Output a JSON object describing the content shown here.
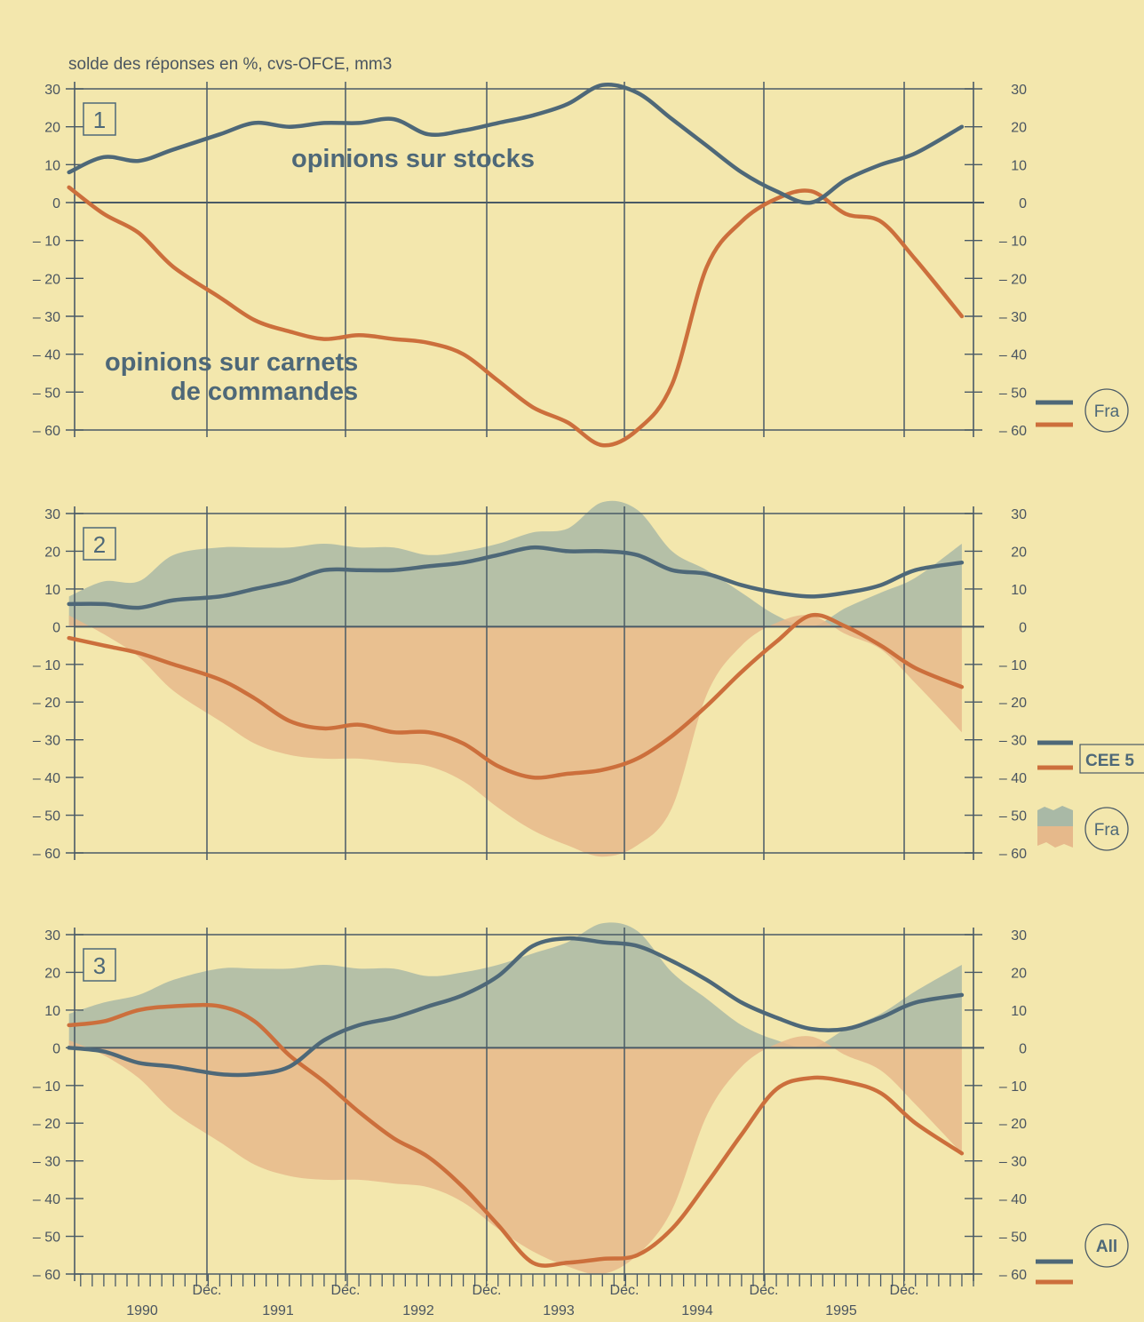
{
  "figure": {
    "header": "solde des réponses en %, cvs-OFCE, mm3",
    "colors": {
      "background": "#f3e7ad",
      "stocks": "#4e6878",
      "orders": "#cc6f3c",
      "fill_stocks": "#a9b9a6",
      "fill_orders": "#e6b98b",
      "axis": "#4a5a66"
    },
    "x_tick_labels": [
      "Déc.",
      "Déc.",
      "Déc.",
      "Déc.",
      "Déc.",
      "Déc."
    ],
    "year_labels": [
      "1990",
      "1991",
      "1992",
      "1993",
      "1994",
      "1995"
    ]
  },
  "chart_data": [
    {
      "type": "line",
      "panel_label": "1",
      "ylim": [
        -60,
        30
      ],
      "yticks": [
        30,
        20,
        10,
        0,
        -10,
        -20,
        -30,
        -40,
        -50,
        -60
      ],
      "ytick_labels": [
        "30",
        "20",
        "10",
        "0",
        "– 10",
        "– 20",
        "– 30",
        "– 40",
        "– 50",
        "– 60"
      ],
      "annotations": [
        "opinions sur stocks",
        "opinions sur carnets",
        "de commandes"
      ],
      "legend": {
        "label": "Fra",
        "position": "right"
      },
      "series": [
        {
          "role": "stocks",
          "x": [
            "1989-07",
            "1989-10",
            "1990-01",
            "1990-04",
            "1990-08",
            "1990-11",
            "1991-02",
            "1991-05",
            "1991-08",
            "1991-11",
            "1992-02",
            "1992-05",
            "1992-08",
            "1992-11",
            "1993-02",
            "1993-05",
            "1993-08",
            "1993-11",
            "1994-02",
            "1994-05",
            "1994-08",
            "1994-11",
            "1995-02",
            "1995-05",
            "1995-08",
            "1995-12"
          ],
          "values": [
            8,
            12,
            11,
            14,
            18,
            21,
            20,
            21,
            21,
            22,
            18,
            19,
            21,
            23,
            26,
            31,
            29,
            22,
            15,
            8,
            3,
            0,
            6,
            10,
            13,
            20
          ]
        },
        {
          "role": "orders",
          "x": [
            "1989-07",
            "1989-10",
            "1990-01",
            "1990-04",
            "1990-08",
            "1990-11",
            "1991-02",
            "1991-05",
            "1991-08",
            "1991-11",
            "1992-02",
            "1992-05",
            "1992-08",
            "1992-11",
            "1993-02",
            "1993-05",
            "1993-08",
            "1993-11",
            "1994-02",
            "1994-05",
            "1994-08",
            "1994-11",
            "1995-02",
            "1995-05",
            "1995-08",
            "1995-12"
          ],
          "values": [
            4,
            -3,
            -8,
            -17,
            -25,
            -31,
            -34,
            -36,
            -35,
            -36,
            -37,
            -40,
            -47,
            -54,
            -58,
            -64,
            -60,
            -48,
            -17,
            -5,
            1,
            3,
            -3,
            -5,
            -15,
            -30
          ]
        }
      ]
    },
    {
      "type": "area",
      "panel_label": "2",
      "ylim": [
        -60,
        30
      ],
      "yticks": [
        30,
        20,
        10,
        0,
        -10,
        -20,
        -30,
        -40,
        -50,
        -60
      ],
      "ytick_labels": [
        "30",
        "20",
        "10",
        "0",
        "– 10",
        "– 20",
        "– 30",
        "– 40",
        "– 50",
        "– 60"
      ],
      "legend": {
        "lines_label": "CEE 5",
        "areas_label": "Fra",
        "position": "right"
      },
      "series": [
        {
          "role": "stocks",
          "x": [
            "1989-07",
            "1989-10",
            "1990-01",
            "1990-04",
            "1990-08",
            "1990-11",
            "1991-02",
            "1991-05",
            "1991-08",
            "1991-11",
            "1992-02",
            "1992-05",
            "1992-08",
            "1992-11",
            "1993-02",
            "1993-05",
            "1993-08",
            "1993-11",
            "1994-02",
            "1994-05",
            "1994-08",
            "1994-11",
            "1995-02",
            "1995-05",
            "1995-08",
            "1995-12"
          ],
          "values": [
            6,
            6,
            5,
            7,
            8,
            10,
            12,
            15,
            15,
            15,
            16,
            17,
            19,
            21,
            20,
            20,
            19,
            15,
            14,
            11,
            9,
            8,
            9,
            11,
            15,
            17
          ]
        },
        {
          "role": "orders",
          "x": [
            "1989-07",
            "1989-10",
            "1990-01",
            "1990-04",
            "1990-08",
            "1990-11",
            "1991-02",
            "1991-05",
            "1991-08",
            "1991-11",
            "1992-02",
            "1992-05",
            "1992-08",
            "1992-11",
            "1993-02",
            "1993-05",
            "1993-08",
            "1993-11",
            "1994-02",
            "1994-05",
            "1994-08",
            "1994-11",
            "1995-02",
            "1995-05",
            "1995-08",
            "1995-12"
          ],
          "values": [
            -3,
            -5,
            -7,
            -10,
            -14,
            -19,
            -25,
            -27,
            -26,
            -28,
            -28,
            -31,
            -37,
            -40,
            -39,
            -38,
            -35,
            -29,
            -21,
            -12,
            -4,
            3,
            0,
            -5,
            -11,
            -16
          ]
        },
        {
          "role": "fill_stocks",
          "x": [
            "1989-07",
            "1989-10",
            "1990-01",
            "1990-04",
            "1990-08",
            "1990-11",
            "1991-02",
            "1991-05",
            "1991-08",
            "1991-11",
            "1992-02",
            "1992-05",
            "1992-08",
            "1992-11",
            "1993-02",
            "1993-05",
            "1993-08",
            "1993-11",
            "1994-02",
            "1994-05",
            "1994-08",
            "1994-11",
            "1995-02",
            "1995-05",
            "1995-08",
            "1995-12"
          ],
          "values": [
            8,
            12,
            12,
            19,
            21,
            21,
            21,
            22,
            21,
            21,
            19,
            20,
            22,
            25,
            26,
            33,
            31,
            20,
            15,
            9,
            3,
            0,
            5,
            9,
            13,
            22
          ]
        },
        {
          "role": "fill_orders",
          "x": [
            "1989-07",
            "1989-10",
            "1990-01",
            "1990-04",
            "1990-08",
            "1990-11",
            "1991-02",
            "1991-05",
            "1991-08",
            "1991-11",
            "1992-02",
            "1992-05",
            "1992-08",
            "1992-11",
            "1993-02",
            "1993-05",
            "1993-08",
            "1993-11",
            "1994-02",
            "1994-05",
            "1994-08",
            "1994-11",
            "1995-02",
            "1995-05",
            "1995-08",
            "1995-12"
          ],
          "values": [
            3,
            -2,
            -8,
            -17,
            -25,
            -31,
            -34,
            -35,
            -35,
            -36,
            -37,
            -41,
            -48,
            -54,
            -58,
            -61,
            -58,
            -48,
            -18,
            -5,
            1,
            3,
            -2,
            -6,
            -15,
            -28
          ]
        }
      ]
    },
    {
      "type": "area",
      "panel_label": "3",
      "ylim": [
        -60,
        30
      ],
      "yticks": [
        30,
        20,
        10,
        0,
        -10,
        -20,
        -30,
        -40,
        -50,
        -60
      ],
      "ytick_labels": [
        "30",
        "20",
        "10",
        "0",
        "– 10",
        "– 20",
        "– 30",
        "– 40",
        "– 50",
        "– 60"
      ],
      "legend": {
        "label": "All",
        "position": "right"
      },
      "series": [
        {
          "role": "stocks",
          "x": [
            "1989-07",
            "1989-10",
            "1990-01",
            "1990-04",
            "1990-08",
            "1990-11",
            "1991-02",
            "1991-05",
            "1991-08",
            "1991-11",
            "1992-02",
            "1992-05",
            "1992-08",
            "1992-11",
            "1993-02",
            "1993-05",
            "1993-08",
            "1993-11",
            "1994-02",
            "1994-05",
            "1994-08",
            "1994-11",
            "1995-02",
            "1995-05",
            "1995-08",
            "1995-12"
          ],
          "values": [
            0,
            -1,
            -4,
            -5,
            -7,
            -7,
            -5,
            2,
            6,
            8,
            11,
            14,
            19,
            27,
            29,
            28,
            27,
            23,
            18,
            12,
            8,
            5,
            5,
            8,
            12,
            14
          ]
        },
        {
          "role": "orders",
          "x": [
            "1989-07",
            "1989-10",
            "1990-01",
            "1990-04",
            "1990-08",
            "1990-11",
            "1991-02",
            "1991-05",
            "1991-08",
            "1991-11",
            "1992-02",
            "1992-05",
            "1992-08",
            "1992-11",
            "1993-02",
            "1993-05",
            "1993-08",
            "1993-11",
            "1994-02",
            "1994-05",
            "1994-08",
            "1994-11",
            "1995-02",
            "1995-05",
            "1995-08",
            "1995-12"
          ],
          "values": [
            6,
            7,
            10,
            11,
            11,
            7,
            -2,
            -9,
            -17,
            -24,
            -29,
            -37,
            -47,
            -57,
            -57,
            -56,
            -55,
            -48,
            -36,
            -23,
            -11,
            -8,
            -9,
            -12,
            -20,
            -28
          ]
        },
        {
          "role": "fill_stocks",
          "x": [
            "1989-07",
            "1989-10",
            "1990-01",
            "1990-04",
            "1990-08",
            "1990-11",
            "1991-02",
            "1991-05",
            "1991-08",
            "1991-11",
            "1992-02",
            "1992-05",
            "1992-08",
            "1992-11",
            "1993-02",
            "1993-05",
            "1993-08",
            "1993-11",
            "1994-02",
            "1994-05",
            "1994-08",
            "1994-11",
            "1995-02",
            "1995-05",
            "1995-08",
            "1995-12"
          ],
          "values": [
            9,
            12,
            14,
            18,
            21,
            21,
            21,
            22,
            21,
            21,
            19,
            20,
            22,
            25,
            28,
            33,
            31,
            20,
            13,
            6,
            2,
            0,
            5,
            9,
            15,
            22
          ]
        },
        {
          "role": "fill_orders",
          "x": [
            "1989-07",
            "1989-10",
            "1990-01",
            "1990-04",
            "1990-08",
            "1990-11",
            "1991-02",
            "1991-05",
            "1991-08",
            "1991-11",
            "1992-02",
            "1992-05",
            "1992-08",
            "1992-11",
            "1993-02",
            "1993-05",
            "1993-08",
            "1993-11",
            "1994-02",
            "1994-05",
            "1994-08",
            "1994-11",
            "1995-02",
            "1995-05",
            "1995-08",
            "1995-12"
          ],
          "values": [
            2,
            -2,
            -8,
            -17,
            -25,
            -31,
            -34,
            -35,
            -35,
            -36,
            -37,
            -41,
            -48,
            -54,
            -58,
            -60,
            -55,
            -43,
            -18,
            -5,
            1,
            3,
            -2,
            -6,
            -15,
            -28
          ]
        }
      ]
    }
  ]
}
